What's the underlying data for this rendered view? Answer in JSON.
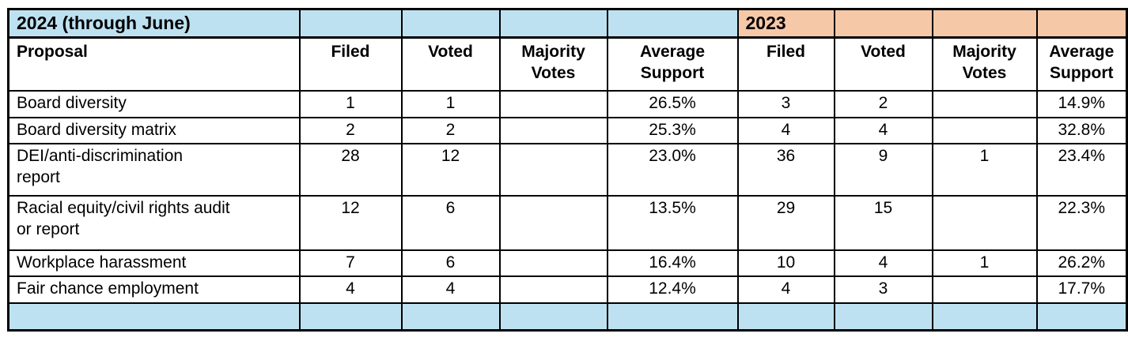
{
  "colors": {
    "blue_fill": "#BEE1F1",
    "peach_fill": "#F5C8A8",
    "border": "#000000",
    "text": "#000000"
  },
  "table": {
    "year_row": [
      {
        "text": "2024 (through June)",
        "fill": "blue"
      },
      {
        "text": "",
        "fill": "blue"
      },
      {
        "text": "",
        "fill": "blue"
      },
      {
        "text": "",
        "fill": "blue"
      },
      {
        "text": "",
        "fill": "blue"
      },
      {
        "text": "2023",
        "fill": "peach"
      },
      {
        "text": "",
        "fill": "peach"
      },
      {
        "text": "",
        "fill": "peach"
      },
      {
        "text": "",
        "fill": "peach"
      }
    ],
    "header_row": [
      "Proposal",
      "Filed",
      "Voted",
      [
        "Majority",
        "Votes"
      ],
      [
        "Average",
        "Support"
      ],
      "Filed",
      "Voted",
      [
        "Majority",
        "Votes"
      ],
      [
        "Average",
        "Support"
      ]
    ],
    "rows": [
      {
        "proposal": "Board diversity",
        "cells": [
          "1",
          "1",
          "",
          "26.5%",
          "3",
          "2",
          "",
          "14.9%"
        ]
      },
      {
        "proposal": "Board diversity matrix",
        "cells": [
          "2",
          "2",
          "",
          "25.3%",
          "4",
          "4",
          "",
          "32.8%"
        ]
      },
      {
        "proposal": [
          "DEI/anti-discrimination",
          "report"
        ],
        "cells": [
          "28",
          "12",
          "",
          "23.0%",
          "36",
          "9",
          "1",
          "23.4%"
        ]
      },
      {
        "proposal": [
          "Racial equity/civil rights audit",
          "or report"
        ],
        "cells": [
          "12",
          "6",
          "",
          "13.5%",
          "29",
          "15",
          "",
          "22.3%"
        ]
      },
      {
        "proposal": "Workplace harassment",
        "cells": [
          "7",
          "6",
          "",
          "16.4%",
          "10",
          "4",
          "1",
          "26.2%"
        ]
      },
      {
        "proposal": "Fair chance employment",
        "cells": [
          "4",
          "4",
          "",
          "12.4%",
          "4",
          "3",
          "",
          "17.7%"
        ]
      }
    ]
  }
}
